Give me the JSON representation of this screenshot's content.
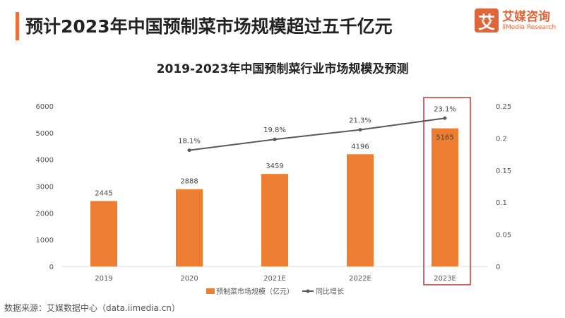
{
  "header": {
    "title": "预计2023年中国预制菜市场规模超过五千亿元",
    "logo_mark": "艾",
    "logo_cn": "艾媒咨询",
    "logo_en": "iiMedia Research"
  },
  "chart_data": {
    "type": "bar+line",
    "title": "2019-2023年中国预制菜行业市场规模及预测",
    "categories": [
      "2019",
      "2020",
      "2021E",
      "2022E",
      "2023E"
    ],
    "series": [
      {
        "name": "预制菜市场规模（亿元）",
        "type": "bar",
        "axis": "left",
        "values": [
          2445,
          2888,
          3459,
          4196,
          5165
        ],
        "labels": [
          "2445",
          "2888",
          "3459",
          "4196",
          "5165"
        ],
        "color": "#ed7d31"
      },
      {
        "name": "同比增长",
        "type": "line",
        "axis": "right",
        "values": [
          null,
          0.181,
          0.198,
          0.213,
          0.231
        ],
        "labels": [
          "",
          "18.1%",
          "19.8%",
          "21.3%",
          "23.1%"
        ],
        "color": "#595959"
      }
    ],
    "left_axis": {
      "ylim": [
        0,
        6000
      ],
      "ticks": [
        "0",
        "1000",
        "2000",
        "3000",
        "4000",
        "5000",
        "6000"
      ]
    },
    "right_axis": {
      "ylim": [
        0,
        0.25
      ],
      "ticks": [
        "0",
        "0.05",
        "0.1",
        "0.15",
        "0.2",
        "0.25"
      ]
    },
    "highlight": "2023E",
    "highlight_color": "#c0392b",
    "legend_position": "bottom"
  },
  "footer": {
    "source": "数据来源：艾媒数据中心（data.iimedia.cn）"
  }
}
